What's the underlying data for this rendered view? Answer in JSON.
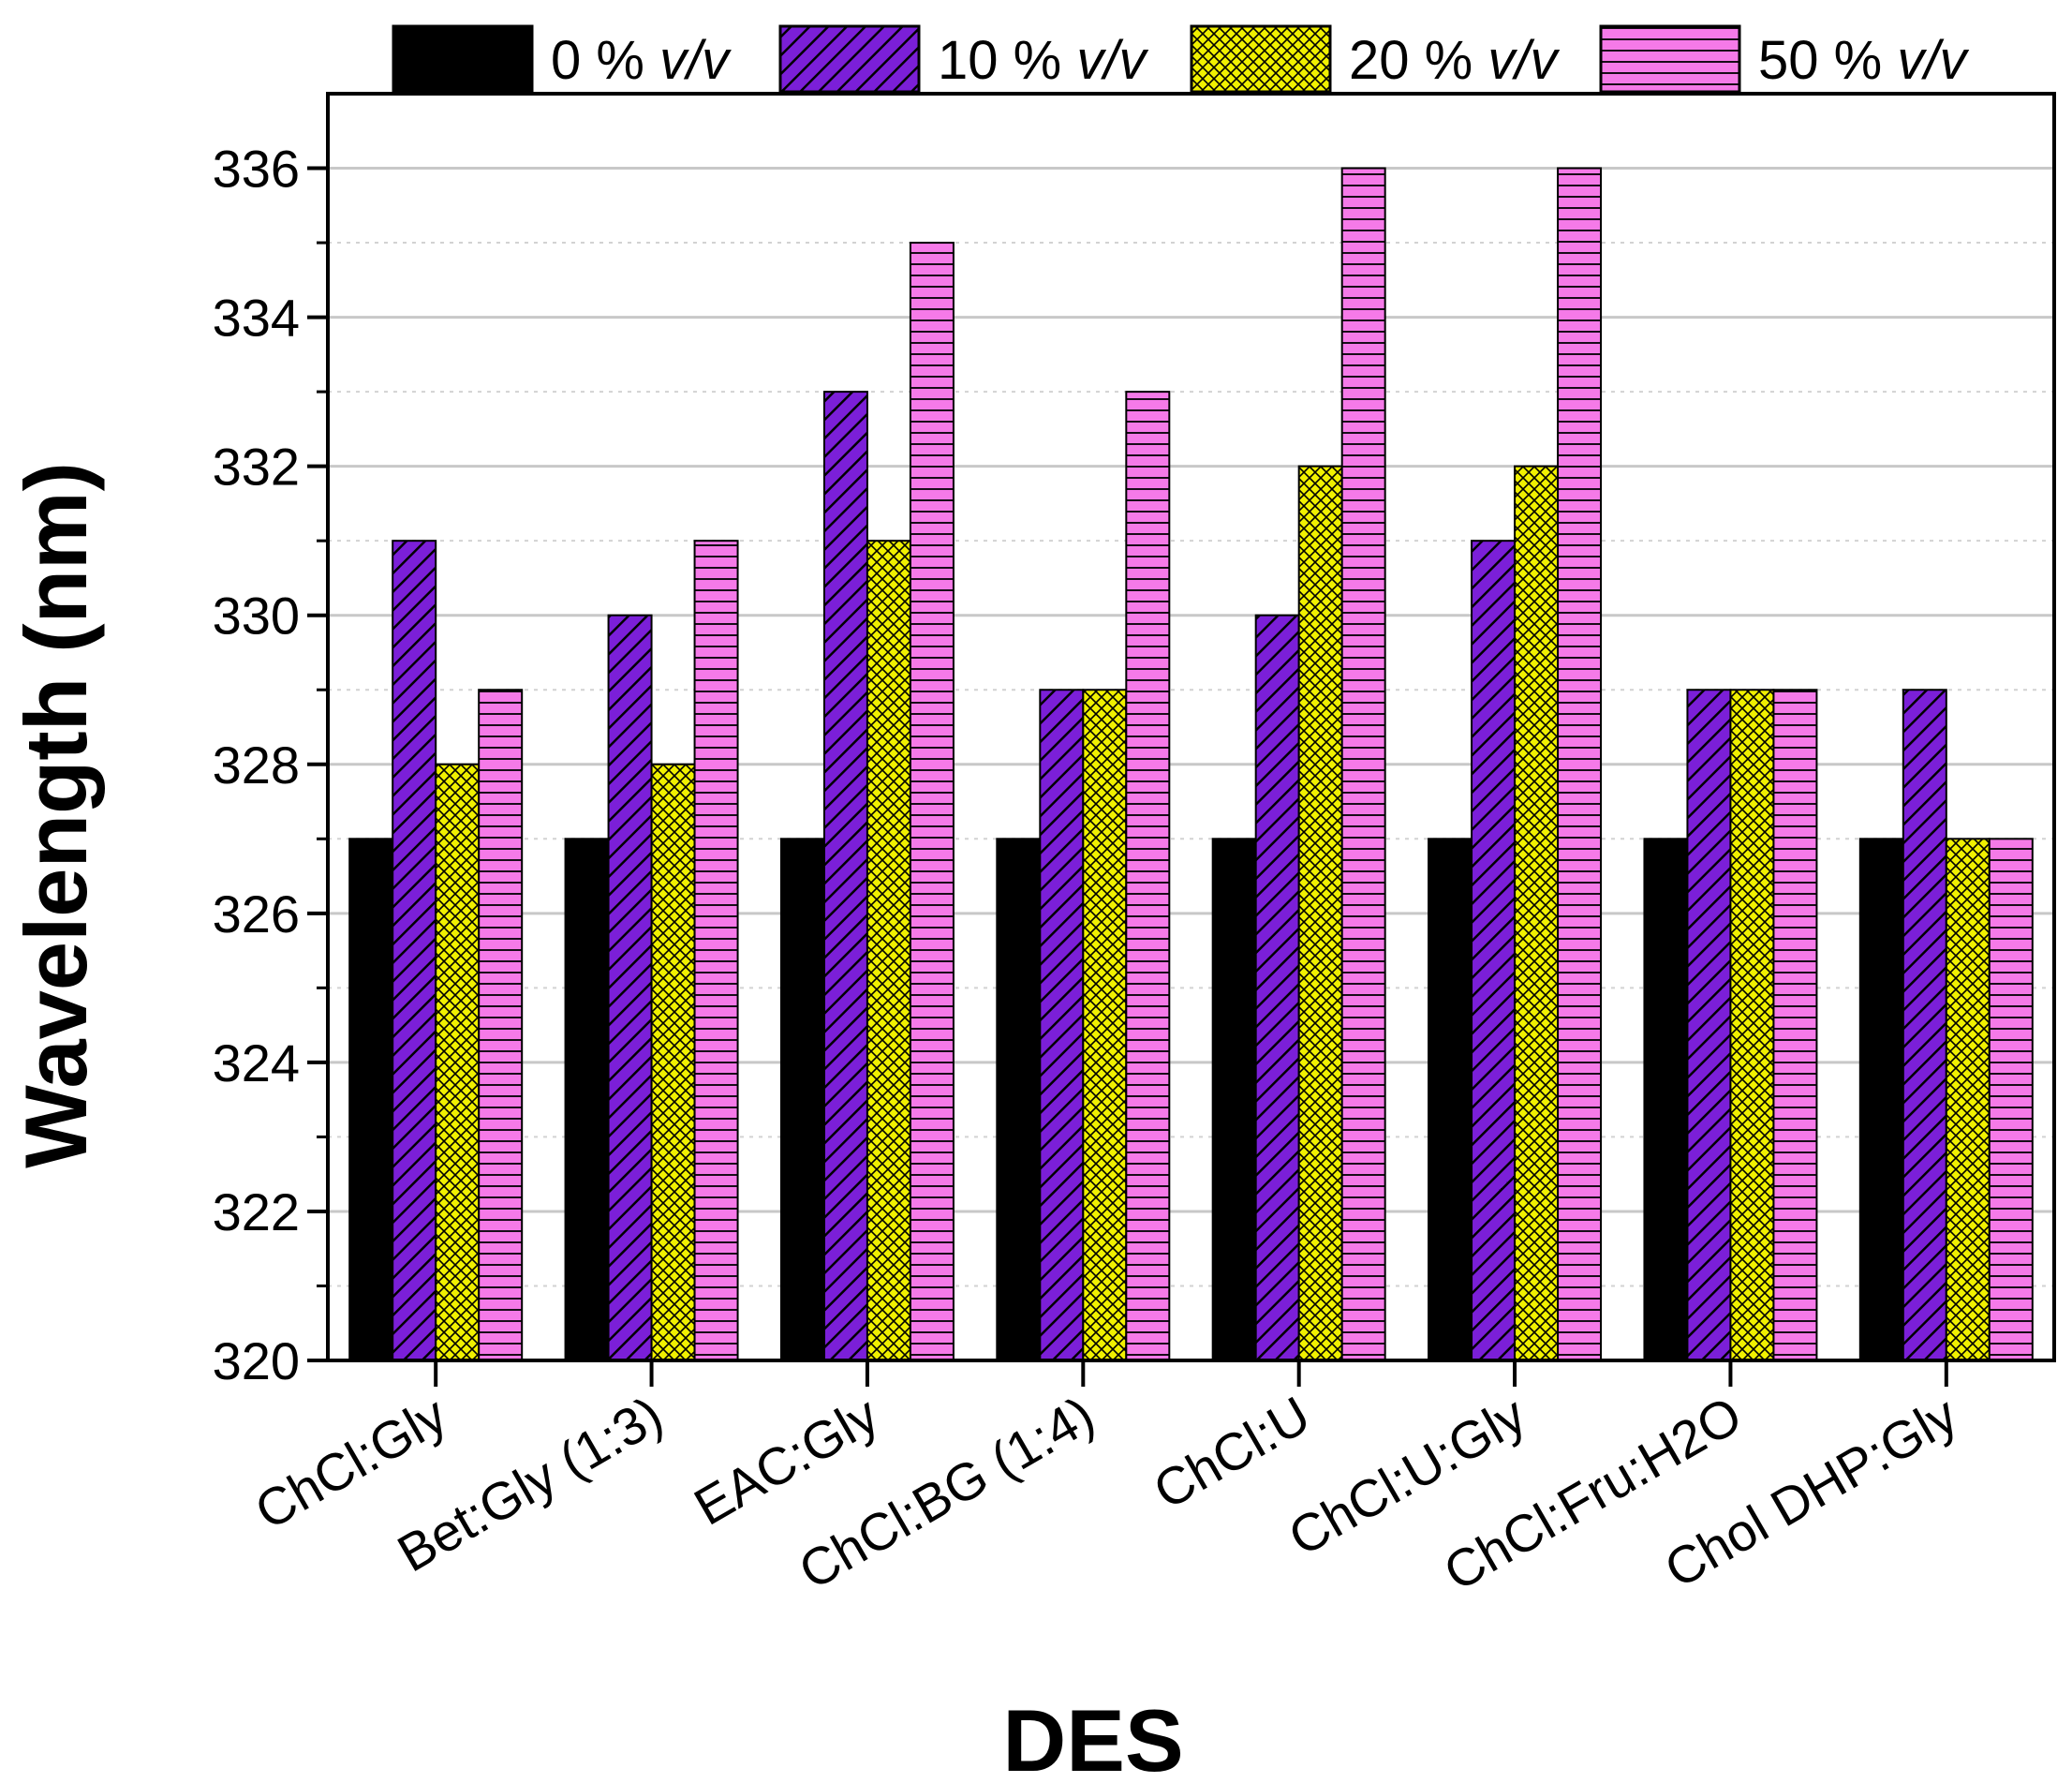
{
  "chart_data": {
    "type": "bar",
    "title": "",
    "xlabel": "DES",
    "ylabel": "Wavelength (nm)",
    "ylim": [
      320,
      337
    ],
    "yticks": [
      320,
      322,
      324,
      326,
      328,
      330,
      332,
      334,
      336
    ],
    "grid": true,
    "legend_position": "top",
    "categories": [
      "ChCl:Gly",
      "Bet:Gly (1:3)",
      "EAC:Gly",
      "ChCl:BG (1:4)",
      "ChCl:U",
      "ChCl:U:Gly",
      "ChCl:Fru:H2O",
      "Chol DHP:Gly"
    ],
    "series": [
      {
        "name": "0 % v/v",
        "legend_number": "0 % ",
        "legend_unit": "v/v",
        "color": "#000000",
        "pattern": "solid",
        "values": [
          327,
          327,
          327,
          327,
          327,
          327,
          327,
          327
        ]
      },
      {
        "name": "10 % v/v",
        "legend_number": "10 % ",
        "legend_unit": "v/v",
        "color": "#7b1fd8",
        "pattern": "diagonal",
        "values": [
          331,
          330,
          333,
          329,
          330,
          331,
          329,
          329
        ]
      },
      {
        "name": "20 % v/v",
        "legend_number": "20 % ",
        "legend_unit": "v/v",
        "color": "#f0f000",
        "pattern": "crosshatch",
        "values": [
          328,
          328,
          331,
          329,
          332,
          332,
          329,
          327
        ]
      },
      {
        "name": "50 % v/v",
        "legend_number": "50 % ",
        "legend_unit": "v/v",
        "color": "#f57ae8",
        "pattern": "horizontal",
        "values": [
          329,
          331,
          335,
          333,
          336,
          336,
          329,
          327
        ]
      }
    ]
  }
}
